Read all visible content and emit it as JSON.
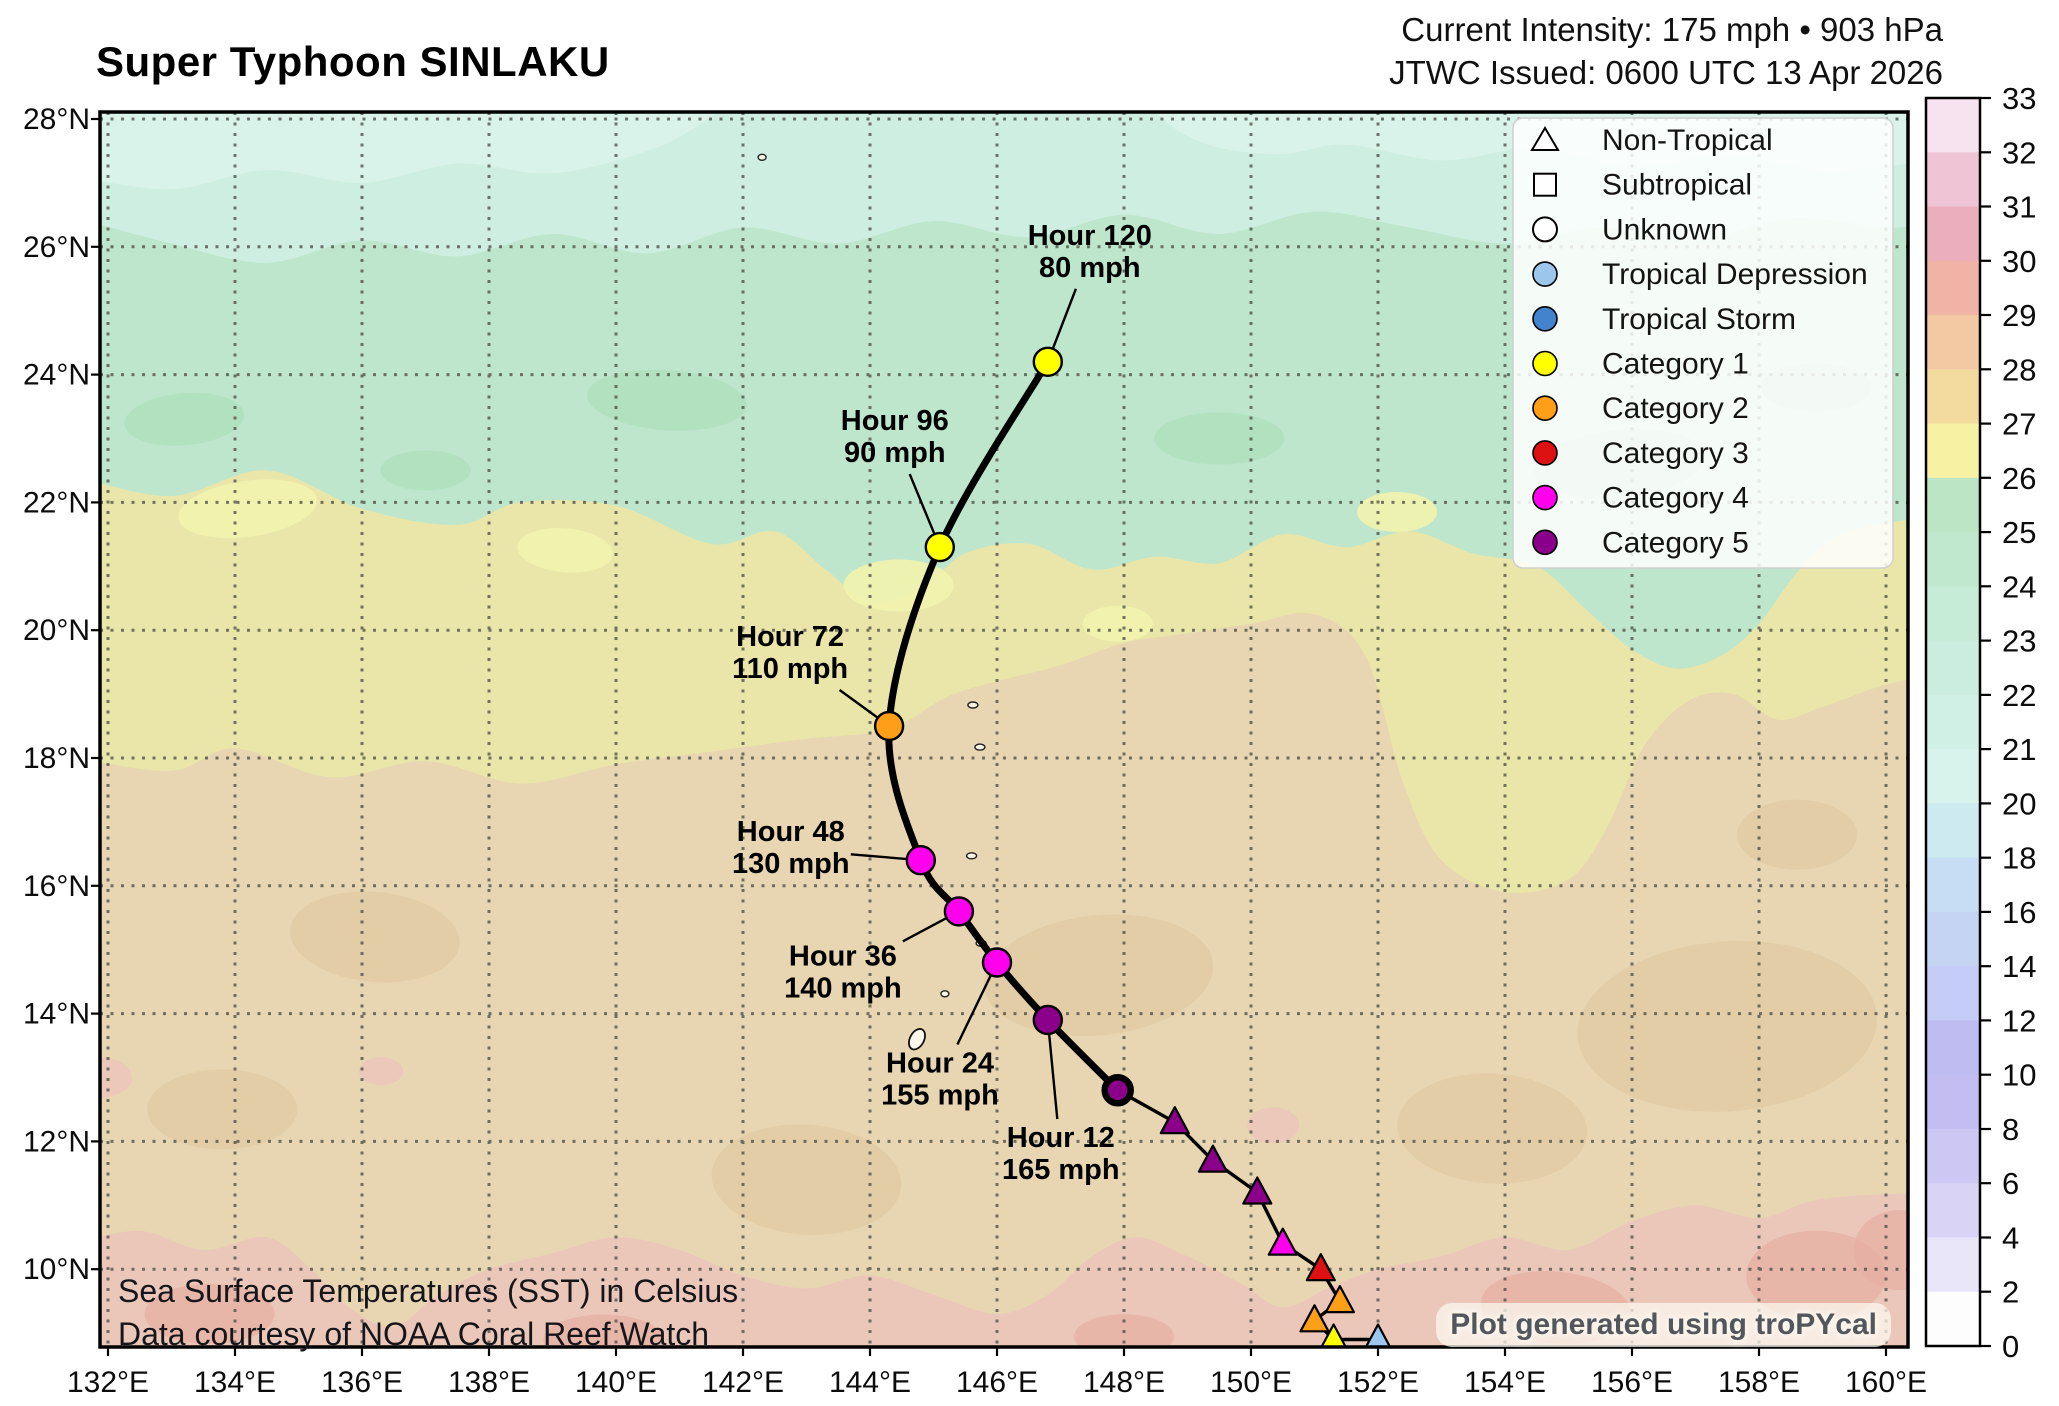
{
  "header": {
    "title": "Super Typhoon SINLAKU",
    "intensity_line": "Current Intensity: 175 mph • 903 hPa",
    "issued_line": "JTWC Issued: 0600 UTC 13 Apr 2026"
  },
  "annotations": {
    "sst_line1": "Sea Surface Temperatures (SST) in Celsius",
    "sst_line2": "Data courtesy of NOAA Coral Reef Watch",
    "credit": "Plot generated using troPYcal"
  },
  "chart_data": {
    "type": "scatter",
    "title": "Super Typhoon SINLAKU — JTWC forecast track over NOAA Coral Reef Watch SST (Celsius)",
    "extent": {
      "lon_min": 131.8,
      "lon_max": 160.5,
      "lat_min": 8.8,
      "lat_max": 28.1
    },
    "grid": "dotted",
    "x_axis": {
      "ticks": [
        {
          "lon": 132,
          "label": "132°E"
        },
        {
          "lon": 134,
          "label": "134°E"
        },
        {
          "lon": 136,
          "label": "136°E"
        },
        {
          "lon": 138,
          "label": "138°E"
        },
        {
          "lon": 140,
          "label": "140°E"
        },
        {
          "lon": 142,
          "label": "142°E"
        },
        {
          "lon": 144,
          "label": "144°E"
        },
        {
          "lon": 146,
          "label": "146°E"
        },
        {
          "lon": 148,
          "label": "148°E"
        },
        {
          "lon": 150,
          "label": "150°E"
        },
        {
          "lon": 152,
          "label": "152°E"
        },
        {
          "lon": 154,
          "label": "154°E"
        },
        {
          "lon": 156,
          "label": "156°E"
        },
        {
          "lon": 158,
          "label": "158°E"
        },
        {
          "lon": 160,
          "label": "160°E"
        }
      ]
    },
    "y_axis": {
      "ticks": [
        {
          "lat": 10,
          "label": "10°N"
        },
        {
          "lat": 12,
          "label": "12°N"
        },
        {
          "lat": 14,
          "label": "14°N"
        },
        {
          "lat": 16,
          "label": "16°N"
        },
        {
          "lat": 18,
          "label": "18°N"
        },
        {
          "lat": 20,
          "label": "20°N"
        },
        {
          "lat": 22,
          "label": "22°N"
        },
        {
          "lat": 24,
          "label": "24°N"
        },
        {
          "lat": 26,
          "label": "26°N"
        },
        {
          "lat": 28,
          "label": "28°N"
        }
      ]
    },
    "category_colors": {
      "td": "#9CC6EB",
      "ts": "#4383CE",
      "cat1": "#FFFF00",
      "cat2": "#FF9E17",
      "cat3": "#DD1111",
      "cat4": "#FF00EE",
      "cat5": "#8B008B"
    },
    "forecast_points": [
      {
        "hour": 0,
        "lon": 147.9,
        "lat": 12.8,
        "category": "cat5",
        "current": true
      },
      {
        "hour": 12,
        "lon": 146.8,
        "lat": 13.9,
        "category": "cat5",
        "wind": "165 mph",
        "label1": "Hour 12",
        "label2": "165 mph",
        "label_offset": [
          13,
          135
        ]
      },
      {
        "hour": 24,
        "lon": 146.0,
        "lat": 14.8,
        "category": "cat4",
        "wind": "155 mph",
        "label1": "Hour 24",
        "label2": "155 mph",
        "label_offset": [
          -57,
          118
        ]
      },
      {
        "hour": 36,
        "lon": 145.4,
        "lat": 15.6,
        "category": "cat4",
        "wind": "140 mph",
        "label1": "Hour 36",
        "label2": "140 mph",
        "label_offset": [
          -116,
          62
        ]
      },
      {
        "hour": 48,
        "lon": 144.8,
        "lat": 16.4,
        "category": "cat4",
        "wind": "130 mph",
        "label1": "Hour 48",
        "label2": "130 mph",
        "label_offset": [
          -130,
          -11
        ]
      },
      {
        "hour": 72,
        "lon": 144.3,
        "lat": 18.5,
        "category": "cat2",
        "wind": "110 mph",
        "label1": "Hour 72",
        "label2": "110 mph",
        "label_offset": [
          -99,
          -72
        ]
      },
      {
        "hour": 96,
        "lon": 145.1,
        "lat": 21.3,
        "category": "cat1",
        "wind": "90 mph",
        "label1": "Hour 96",
        "label2": "90 mph",
        "label_offset": [
          -45,
          -109
        ]
      },
      {
        "hour": 120,
        "lon": 146.8,
        "lat": 24.2,
        "category": "cat1",
        "wind": "80 mph",
        "label1": "Hour 120",
        "label2": "80 mph",
        "label_offset": [
          42,
          -109
        ]
      }
    ],
    "past_points": [
      {
        "lon": 148.8,
        "lat": 12.3,
        "category": "cat5"
      },
      {
        "lon": 149.4,
        "lat": 11.7,
        "category": "cat5"
      },
      {
        "lon": 150.1,
        "lat": 11.2,
        "category": "cat5"
      },
      {
        "lon": 150.5,
        "lat": 10.4,
        "category": "cat4"
      },
      {
        "lon": 151.1,
        "lat": 10.0,
        "category": "cat3"
      },
      {
        "lon": 151.4,
        "lat": 9.5,
        "category": "cat2"
      },
      {
        "lon": 151.0,
        "lat": 9.2,
        "category": "cat2"
      },
      {
        "lon": 151.3,
        "lat": 8.9,
        "category": "cat1"
      },
      {
        "lon": 152.0,
        "lat": 8.9,
        "category": "td"
      }
    ],
    "legend": {
      "items": [
        {
          "label": "Non-Tropical",
          "symbol": "triangle",
          "fill": "#FFFFFF"
        },
        {
          "label": "Subtropical",
          "symbol": "square",
          "fill": "#FFFFFF"
        },
        {
          "label": "Unknown",
          "symbol": "circle",
          "fill": "#FFFFFF"
        },
        {
          "label": "Tropical Depression",
          "symbol": "dot",
          "category": "td"
        },
        {
          "label": "Tropical Storm",
          "symbol": "dot",
          "category": "ts"
        },
        {
          "label": "Category 1",
          "symbol": "dot",
          "category": "cat1"
        },
        {
          "label": "Category 2",
          "symbol": "dot",
          "category": "cat2"
        },
        {
          "label": "Category 3",
          "symbol": "dot",
          "category": "cat3"
        },
        {
          "label": "Category 4",
          "symbol": "dot",
          "category": "cat4"
        },
        {
          "label": "Category 5",
          "symbol": "dot",
          "category": "cat5"
        }
      ]
    },
    "colorbar": {
      "tick_labels": [
        "33",
        "32",
        "31",
        "30",
        "29",
        "28",
        "27",
        "26",
        "25",
        "24",
        "23",
        "22",
        "21",
        "20",
        "18",
        "16",
        "14",
        "12",
        "10",
        "8",
        "6",
        "4",
        "2",
        "0"
      ],
      "segment_colors": [
        "#F7E3EF",
        "#EFC5D6",
        "#EAAEBC",
        "#EFB4A6",
        "#F2C9A2",
        "#F3DBA0",
        "#F7F2A3",
        "#BCE5C6",
        "#C0E8CE",
        "#C6EBD7",
        "#CBEDDF",
        "#D1F0E5",
        "#D7F3EB",
        "#CDEAF0",
        "#C7DDF3",
        "#C6D4F4",
        "#C5CCF5",
        "#BEBCF0",
        "#C3BDF1",
        "#CDC7F3",
        "#D9D4F6",
        "#E9E6FA",
        "#FDFDFE"
      ]
    },
    "map_colors": {
      "tan": "#E7D6B1",
      "yellow": "#EAE6A9",
      "green": "#BDE6CC",
      "teal": "#CDEEE0",
      "cyan": "#D9F3EA",
      "pink": "#EBC7BA"
    }
  }
}
